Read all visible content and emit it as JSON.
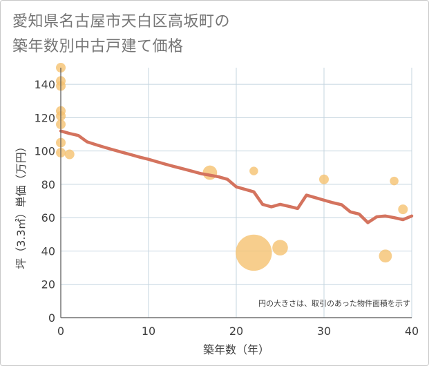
{
  "chart_data": {
    "type": "scatter",
    "title_lines": [
      "愛知県名古屋市天白区高坂町の",
      "築年数別中古戸建て価格"
    ],
    "xlabel": "築年数（年）",
    "ylabel": "坪（3.3㎡）単価（万円）",
    "xlim": [
      0,
      40
    ],
    "ylim": [
      0,
      150
    ],
    "x_ticks": [
      0,
      10,
      20,
      30,
      40
    ],
    "y_ticks": [
      0,
      20,
      40,
      60,
      80,
      100,
      120,
      140
    ],
    "note": "円の大きさは、取引のあった物件面積を示す",
    "colors": {
      "bubble": "#f5c271",
      "line": "#d4735e",
      "grid": "#c4d4df"
    },
    "points": [
      {
        "x": 0,
        "y": 150,
        "size": 1
      },
      {
        "x": 0,
        "y": 142,
        "size": 1
      },
      {
        "x": 0,
        "y": 139,
        "size": 1
      },
      {
        "x": 0,
        "y": 124,
        "size": 1
      },
      {
        "x": 0,
        "y": 121,
        "size": 1
      },
      {
        "x": 0,
        "y": 116,
        "size": 1
      },
      {
        "x": 0,
        "y": 105,
        "size": 1
      },
      {
        "x": 0,
        "y": 99,
        "size": 1
      },
      {
        "x": 1,
        "y": 98,
        "size": 1
      },
      {
        "x": 17,
        "y": 87,
        "size": 2.2
      },
      {
        "x": 22,
        "y": 88,
        "size": 0.8
      },
      {
        "x": 22,
        "y": 39,
        "size": 14
      },
      {
        "x": 25,
        "y": 42,
        "size": 2.6
      },
      {
        "x": 30,
        "y": 83,
        "size": 1
      },
      {
        "x": 37,
        "y": 37,
        "size": 1.8
      },
      {
        "x": 38,
        "y": 82,
        "size": 0.8
      },
      {
        "x": 39,
        "y": 65,
        "size": 1
      }
    ],
    "trend": {
      "x": [
        0,
        1,
        2,
        3,
        4,
        5,
        6,
        7,
        8,
        9,
        10,
        11,
        12,
        13,
        14,
        15,
        16,
        17,
        18,
        19,
        20,
        21,
        22,
        23,
        24,
        25,
        26,
        27,
        28,
        29,
        30,
        31,
        32,
        33,
        34,
        35,
        36,
        37,
        38,
        39,
        40
      ],
      "y": [
        112,
        110.5,
        109.3,
        105.5,
        103.8,
        102.2,
        100.7,
        99.2,
        97.8,
        96.3,
        95,
        93.5,
        92,
        90.6,
        89.2,
        87.8,
        86.4,
        85.5,
        84.5,
        83,
        78.5,
        77,
        75.5,
        68,
        66.5,
        68,
        66.8,
        65.5,
        73.5,
        72,
        70.5,
        69,
        67.8,
        63.5,
        62.2,
        57,
        60.5,
        61,
        60,
        58.8,
        61
      ]
    }
  }
}
